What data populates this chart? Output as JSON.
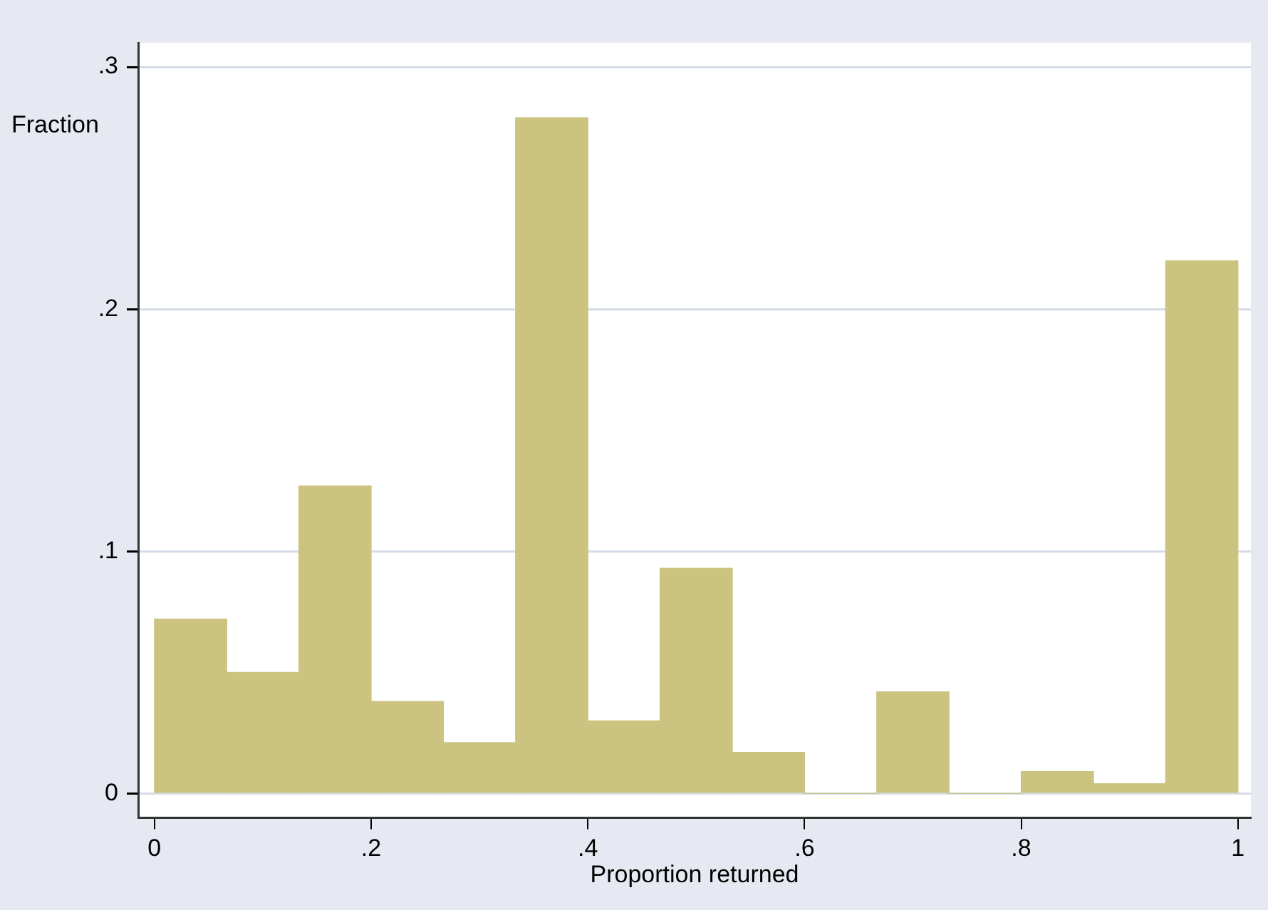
{
  "chart_data": {
    "type": "histogram",
    "xlabel": "Proportion returned",
    "ylabel": "Fraction",
    "bins": [
      0,
      0.0667,
      0.1333,
      0.2,
      0.2667,
      0.3333,
      0.4,
      0.4667,
      0.5333,
      0.6,
      0.6667,
      0.7333,
      0.8,
      0.8667,
      0.9333,
      1
    ],
    "values": [
      0.072,
      0.05,
      0.127,
      0.038,
      0.021,
      0.279,
      0.03,
      0.093,
      0.017,
      0,
      0.042,
      0,
      0.009,
      0.004,
      0.22
    ],
    "color": "#cbc37f",
    "xlim": [
      -0.015,
      1.012
    ],
    "xticks": [
      {
        "value": 0,
        "label": "0"
      },
      {
        "value": 0.2,
        "label": ".2"
      },
      {
        "value": 0.4,
        "label": ".4"
      },
      {
        "value": 0.6,
        "label": ".6"
      },
      {
        "value": 0.8,
        "label": ".8"
      },
      {
        "value": 1,
        "label": "1"
      }
    ],
    "ylim": [
      -0.01,
      0.31
    ],
    "yticks": [
      {
        "value": 0,
        "label": "0"
      },
      {
        "value": 0.1,
        "label": ".1"
      },
      {
        "value": 0.2,
        "label": ".2"
      },
      {
        "value": 0.3,
        "label": ".3"
      }
    ],
    "grid": "y"
  }
}
